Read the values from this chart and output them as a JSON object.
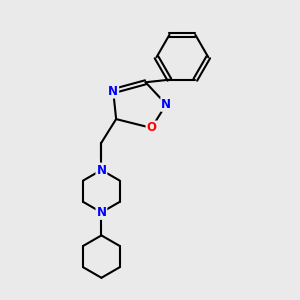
{
  "background_color": "#eaeaea",
  "bond_color": "#000000",
  "bond_width": 1.5,
  "atom_colors": {
    "N": "#0000ff",
    "O": "#ff0000",
    "C": "#000000"
  },
  "font_size_atom": 8.5
}
